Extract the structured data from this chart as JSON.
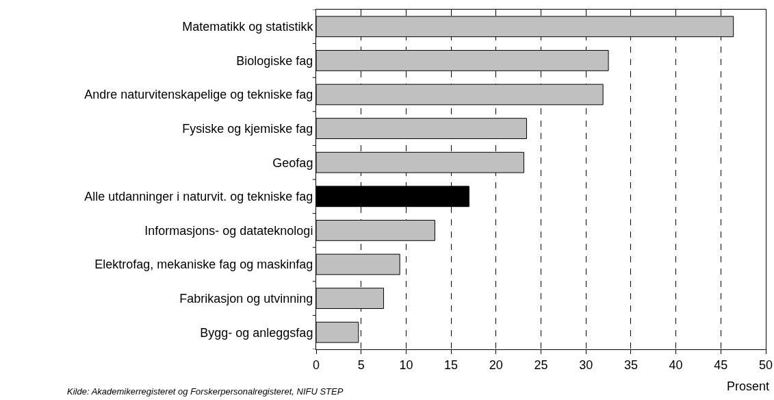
{
  "chart_data": {
    "type": "bar",
    "orientation": "horizontal",
    "xlabel": "Prosent",
    "categories": [
      "Matematikk og statistikk",
      "Biologiske fag",
      "Andre naturvitenskapelige og tekniske fag",
      "Fysiske og kjemiske fag",
      "Geofag",
      "Alle utdanninger i naturvit. og tekniske fag",
      "Informasjons- og datateknologi",
      "Elektrofag, mekaniske fag og maskinfag",
      "Fabrikasjon og utvinning",
      "Bygg- og anleggsfag"
    ],
    "values": [
      46.4,
      32.5,
      31.9,
      23.4,
      23.1,
      17.0,
      13.2,
      9.3,
      7.5,
      4.7
    ],
    "colors": [
      "#c0c0c0",
      "#c0c0c0",
      "#c0c0c0",
      "#c0c0c0",
      "#c0c0c0",
      "#000000",
      "#c0c0c0",
      "#c0c0c0",
      "#c0c0c0",
      "#c0c0c0"
    ],
    "xlim": [
      0,
      50
    ],
    "xticks": [
      0,
      5,
      10,
      15,
      20,
      25,
      30,
      35,
      40,
      45,
      50
    ],
    "grid": "x",
    "annotations": [
      "Kilde: Akademikerregisteret og Forskerpersonalregisteret, NIFU STEP"
    ]
  }
}
